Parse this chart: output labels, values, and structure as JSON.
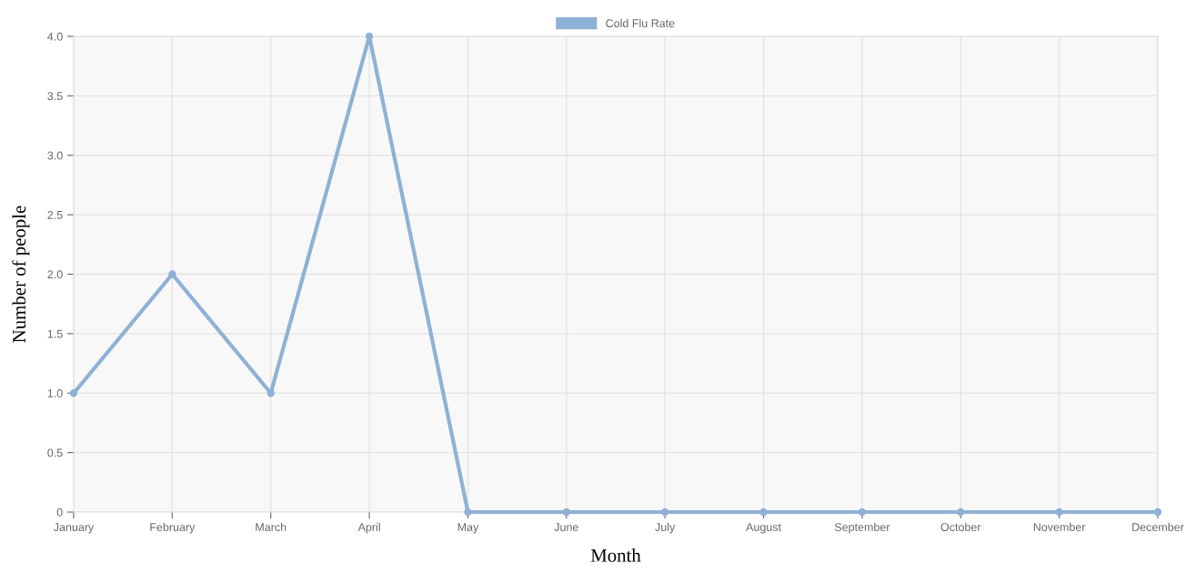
{
  "chart_data": {
    "type": "line",
    "xlabel": "Month",
    "ylabel": "Number of people",
    "categories": [
      "January",
      "February",
      "March",
      "April",
      "May",
      "June",
      "July",
      "August",
      "September",
      "October",
      "November",
      "December"
    ],
    "series": [
      {
        "name": "Cold Flu Rate",
        "color": "#8eb1d6",
        "values": [
          1,
          2,
          1,
          4,
          0,
          0,
          0,
          0,
          0,
          0,
          0,
          0
        ]
      }
    ],
    "ylim": [
      0,
      4
    ],
    "yticks": [
      0,
      {
        "value": 0.5,
        "label": "0.5"
      },
      {
        "value": 1,
        "label": "1.0"
      },
      {
        "value": 1.5,
        "label": "1.5"
      },
      {
        "value": 2,
        "label": "2.0"
      },
      {
        "value": 2.5,
        "label": "2.5"
      },
      {
        "value": 3,
        "label": "3.0"
      },
      {
        "value": 3.5,
        "label": "3.5"
      },
      {
        "value": 4,
        "label": "4.0"
      }
    ],
    "grid": true,
    "legend": "top",
    "marker": "circle",
    "line_style": "solid"
  }
}
